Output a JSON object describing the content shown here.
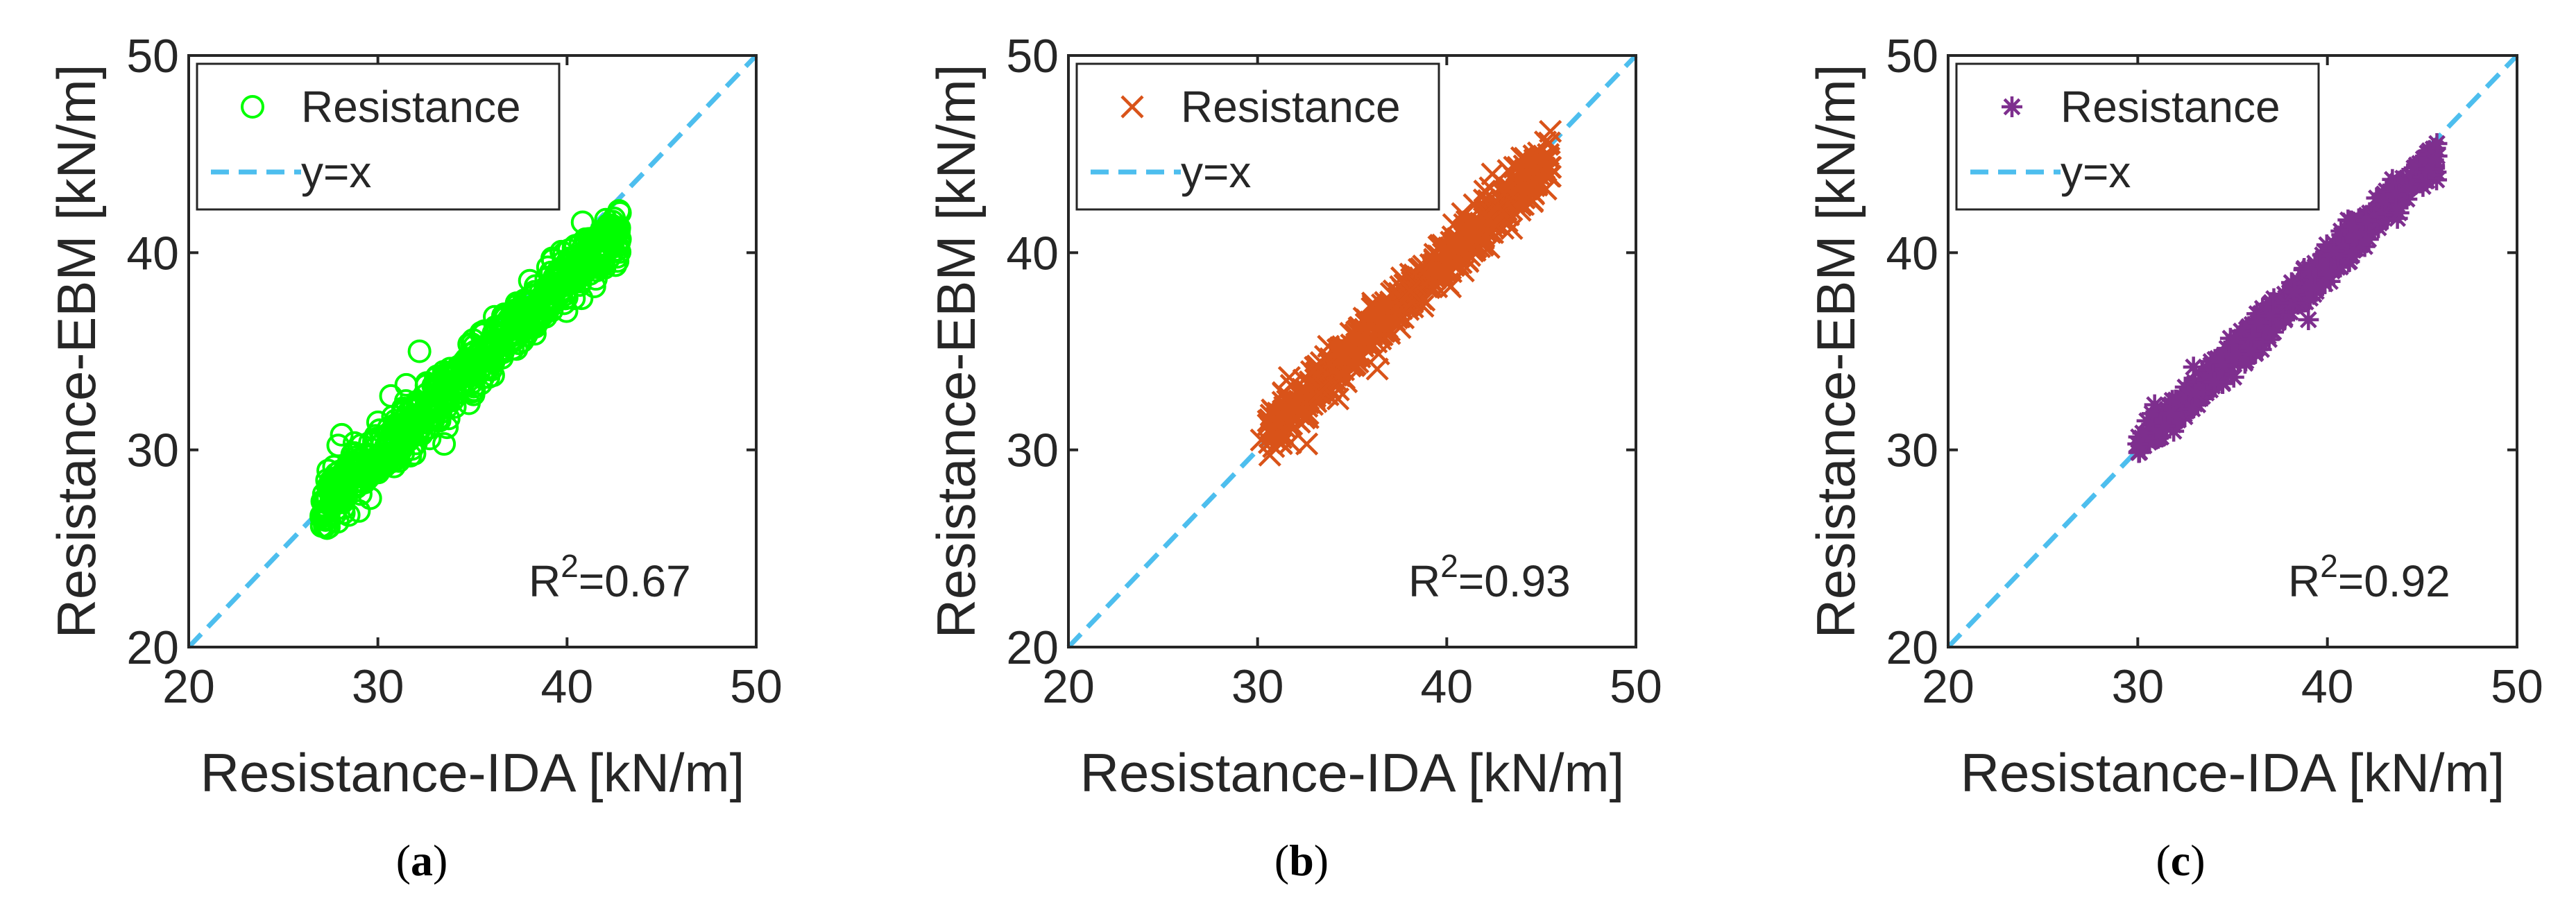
{
  "chart_data": [
    {
      "type": "scatter",
      "panel": "a",
      "caption_open": "(",
      "caption_letter": "a",
      "caption_close": ")",
      "xlabel": "Resistance-IDA [kN/m]",
      "ylabel": "Resistance-EBM [kN/m]",
      "xlim": [
        20,
        50
      ],
      "ylim": [
        20,
        50
      ],
      "xticks": [
        "20",
        "30",
        "40",
        "50"
      ],
      "yticks": [
        "20",
        "30",
        "40",
        "50"
      ],
      "marker": "circle",
      "marker_color": "#00ff00",
      "ref_line_color": "#4dbeee",
      "legend": {
        "series_label": "Resistance",
        "ref_label": "y=x",
        "position": "top-left"
      },
      "r2_prefix": "R",
      "r2_exp": "2",
      "r2_value": "=0.67",
      "cloud": {
        "x_range": [
          27,
          42.8
        ],
        "slope": 0.89,
        "intercept": 3.1,
        "spread": 0.75,
        "count": 700,
        "seed": 11
      },
      "outliers": [
        [
          32.2,
          35.0
        ],
        [
          31.5,
          33.3
        ],
        [
          27.3,
          27.0
        ],
        [
          28.2,
          26.8
        ],
        [
          29.0,
          26.9
        ],
        [
          42.5,
          40.9
        ],
        [
          33.5,
          30.3
        ],
        [
          36.3,
          36.2
        ]
      ]
    },
    {
      "type": "scatter",
      "panel": "b",
      "caption_open": "(",
      "caption_letter": "b",
      "caption_close": ")",
      "xlabel": "Resistance-IDA [kN/m]",
      "ylabel": "Resistance-EBM [kN/m]",
      "xlim": [
        20,
        50
      ],
      "ylim": [
        20,
        50
      ],
      "xticks": [
        "20",
        "30",
        "40",
        "50"
      ],
      "yticks": [
        "20",
        "30",
        "40",
        "50"
      ],
      "marker": "x",
      "marker_color": "#d95319",
      "ref_line_color": "#4dbeee",
      "legend": {
        "series_label": "Resistance",
        "ref_label": "y=x",
        "position": "top-left"
      },
      "r2_prefix": "R",
      "r2_exp": "2",
      "r2_value": "=0.93",
      "cloud": {
        "x_range": [
          30.5,
          45.5
        ],
        "slope": 0.93,
        "intercept": 2.5,
        "spread": 0.6,
        "count": 600,
        "seed": 23
      },
      "outliers": [
        [
          30.2,
          30.5
        ],
        [
          32.6,
          30.3
        ],
        [
          31.8,
          31.3
        ],
        [
          45.4,
          44.8
        ],
        [
          44.1,
          44.4
        ]
      ]
    },
    {
      "type": "scatter",
      "panel": "c",
      "caption_open": "(",
      "caption_letter": "c",
      "caption_close": ")",
      "xlabel": "Resistance-IDA [kN/m]",
      "ylabel": "Resistance-EBM [kN/m]",
      "xlim": [
        20,
        50
      ],
      "ylim": [
        20,
        50
      ],
      "xticks": [
        "20",
        "30",
        "40",
        "50"
      ],
      "yticks": [
        "20",
        "30",
        "40",
        "50"
      ],
      "marker": "star",
      "marker_color": "#7e2f8e",
      "ref_line_color": "#4dbeee",
      "legend": {
        "series_label": "Resistance",
        "ref_label": "y=x",
        "position": "top-left"
      },
      "r2_prefix": "R",
      "r2_exp": "2",
      "r2_value": "=0.92",
      "cloud": {
        "x_range": [
          30,
          45.8
        ],
        "slope": 0.93,
        "intercept": 2.2,
        "spread": 0.45,
        "count": 600,
        "seed": 37
      },
      "outliers": [
        [
          30.0,
          30.3
        ],
        [
          45.6,
          44.7
        ],
        [
          39.0,
          36.6
        ]
      ]
    }
  ]
}
